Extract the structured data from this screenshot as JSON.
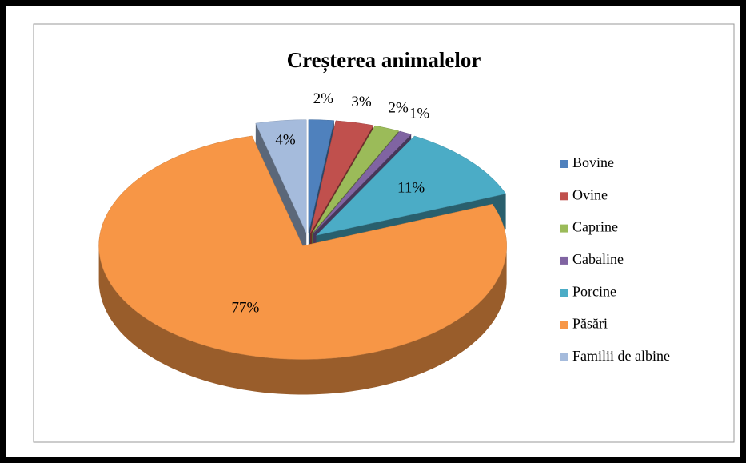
{
  "chart_data": {
    "type": "pie",
    "title": "Creșterea animalelor",
    "categories": [
      "Bovine",
      "Ovine",
      "Caprine",
      "Cabaline",
      "Porcine",
      "Păsări",
      "Familii de albine"
    ],
    "values": [
      2,
      3,
      2,
      1,
      11,
      77,
      4
    ],
    "value_labels": [
      "2%",
      "3%",
      "2%",
      "1%",
      "11%",
      "77%",
      "4%"
    ],
    "colors": [
      "#4f81bd",
      "#c0504d",
      "#9bbb59",
      "#8064a2",
      "#4bacc6",
      "#f79646",
      "#a5bbdc"
    ]
  }
}
